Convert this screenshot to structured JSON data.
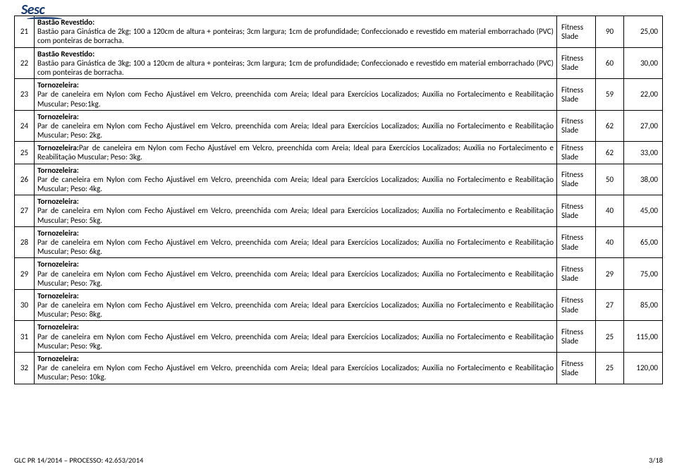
{
  "logo_text": "Sesc",
  "footer_left": "GLC PR 14/2014 – PROCESSO: 42.653/2014",
  "footer_right": "3/18",
  "brand_fitness": "Fitness",
  "brand_slade": "Slade",
  "rows": [
    {
      "num": "21",
      "title": "Bastão Revestido:",
      "body": "Bastão para Ginástica de 2kg; 100 a 120cm de altura + ponteiras; 3cm largura; 1cm de profundidade; Confeccionado e revestido em material emborrachado (PVC) com ponteiras de borracha.",
      "qty": "90",
      "price": "25,00"
    },
    {
      "num": "22",
      "title": "Bastão Revestido:",
      "body": "Bastão para Ginástica de 3kg; 100 a 120cm de altura + ponteiras; 3cm largura; 1cm de profundidade; Confeccionado e revestido em material emborrachado (PVC) com ponteiras de borracha.",
      "qty": "60",
      "price": "30,00"
    },
    {
      "num": "23",
      "title": "Tornozeleira:",
      "body": "Par de caneleira em Nylon com Fecho Ajustável em Velcro, preenchida com Areia; Ideal para Exercícios Localizados; Auxilia no Fortalecimento e Reabilitação Muscular; Peso:1kg.",
      "qty": "59",
      "price": "22,00"
    },
    {
      "num": "24",
      "title": "Tornozeleira:",
      "body": "Par de caneleira em Nylon com Fecho Ajustável em Velcro, preenchida com Areia; Ideal para Exercícios Localizados; Auxilia no Fortalecimento e Reabilitação Muscular; Peso: 2kg.",
      "qty": "62",
      "price": "27,00"
    },
    {
      "num": "25",
      "title": "Tornozeleira:",
      "inline": true,
      "body": "Par de caneleira em Nylon com Fecho Ajustável em Velcro, preenchida com Areia; Ideal para Exercícios Localizados; Auxilia no Fortalecimento e Reabilitação Muscular; Peso: 3kg.",
      "qty": "62",
      "price": "33,00"
    },
    {
      "num": "26",
      "title": "Tornozeleira:",
      "body": "Par de caneleira em Nylon com Fecho Ajustável em Velcro, preenchida com Areia; Ideal para Exercícios Localizados; Auxilia no Fortalecimento e Reabilitação Muscular; Peso: 4kg.",
      "qty": "50",
      "price": "38,00"
    },
    {
      "num": "27",
      "title": "Tornozeleira:",
      "body": "Par de caneleira em Nylon com Fecho Ajustável em Velcro, preenchida com Areia; Ideal para Exercícios Localizados; Auxilia no Fortalecimento e Reabilitação Muscular; Peso: 5kg.",
      "qty": "40",
      "price": "45,00"
    },
    {
      "num": "28",
      "title": "Tornozeleira:",
      "body": "Par de caneleira em Nylon com Fecho Ajustável em Velcro, preenchida com Areia; Ideal para Exercícios Localizados; Auxilia no Fortalecimento e Reabilitação Muscular; Peso: 6kg.",
      "qty": "40",
      "price": "65,00"
    },
    {
      "num": "29",
      "title": "Tornozeleira:",
      "body": "Par de caneleira em Nylon com Fecho Ajustável em Velcro, preenchida com Areia; Ideal para Exercícios Localizados; Auxilia no Fortalecimento e Reabilitação Muscular; Peso: 7kg.",
      "qty": "29",
      "price": "75,00"
    },
    {
      "num": "30",
      "title": "Tornozeleira:",
      "body": "Par de caneleira em Nylon com Fecho Ajustável em Velcro, preenchida com Areia; Ideal para Exercícios Localizados; Auxilia no Fortalecimento e Reabilitação Muscular; Peso: 8kg.",
      "qty": "27",
      "price": "85,00"
    },
    {
      "num": "31",
      "title": "Tornozeleira:",
      "body": "Par de caneleira em Nylon com Fecho Ajustável em Velcro, preenchida com Areia; Ideal para Exercícios Localizados; Auxilia no Fortalecimento e Reabilitação Muscular; Peso: 9kg.",
      "qty": "25",
      "price": "115,00"
    },
    {
      "num": "32",
      "title": "Tornozeleira:",
      "body": "Par de caneleira em Nylon com Fecho Ajustável em Velcro, preenchida com Areia; Ideal para Exercícios Localizados; Auxilia no Fortalecimento e Reabilitação Muscular; Peso: 10kg.",
      "qty": "25",
      "price": "120,00"
    }
  ]
}
